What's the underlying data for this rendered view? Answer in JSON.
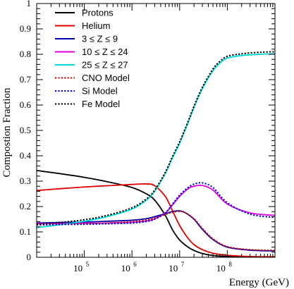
{
  "chart_data": {
    "type": "line",
    "title": "",
    "xlabel": "Energy (GeV)",
    "ylabel": "Compostion Fraction",
    "x_scale": "log",
    "xlim": [
      10000,
      1000000000
    ],
    "ylim": [
      0,
      1
    ],
    "x_ticks": [
      {
        "value": 100000,
        "base": "10",
        "exp": "5"
      },
      {
        "value": 1000000,
        "base": "10",
        "exp": "6"
      },
      {
        "value": 10000000,
        "base": "10",
        "exp": "7"
      },
      {
        "value": 100000000,
        "base": "10",
        "exp": "8"
      }
    ],
    "y_ticks": [
      "0",
      "0.1",
      "0.2",
      "0.3",
      "0.4",
      "0.5",
      "0.6",
      "0.7",
      "0.8",
      "0.9",
      "1"
    ],
    "grid": false,
    "legend_position": "top-left",
    "series": [
      {
        "name": "Protons",
        "color": "#000000",
        "dash": "solid",
        "x": [
          10000,
          30000,
          100000,
          300000,
          1000000,
          2000000,
          3000000,
          5000000,
          7000000,
          10000000,
          15000000,
          20000000,
          30000000,
          50000000,
          100000000,
          300000000,
          1000000000
        ],
        "y": [
          0.342,
          0.33,
          0.315,
          0.298,
          0.275,
          0.25,
          0.225,
          0.165,
          0.11,
          0.068,
          0.04,
          0.027,
          0.015,
          0.007,
          0.003,
          0.001,
          0.0
        ]
      },
      {
        "name": "Helium",
        "color": "#dd0000",
        "dash": "solid",
        "x": [
          10000,
          30000,
          100000,
          300000,
          1000000,
          2000000,
          3000000,
          5000000,
          7000000,
          10000000,
          15000000,
          20000000,
          30000000,
          50000000,
          100000000,
          300000000,
          1000000000
        ],
        "y": [
          0.263,
          0.27,
          0.277,
          0.282,
          0.287,
          0.289,
          0.282,
          0.24,
          0.185,
          0.125,
          0.075,
          0.05,
          0.03,
          0.016,
          0.008,
          0.003,
          0.002
        ]
      },
      {
        "name": "3 ≤ Z ≤ 9",
        "color": "#0000aa",
        "dash": "solid",
        "x": [
          10000,
          30000,
          100000,
          300000,
          1000000,
          2000000,
          3000000,
          5000000,
          7000000,
          10000000,
          13000000,
          20000000,
          30000000,
          50000000,
          100000000,
          300000000,
          1000000000
        ],
        "y": [
          0.135,
          0.137,
          0.139,
          0.142,
          0.146,
          0.152,
          0.16,
          0.172,
          0.18,
          0.183,
          0.176,
          0.15,
          0.11,
          0.07,
          0.04,
          0.028,
          0.025
        ]
      },
      {
        "name": "10 ≤ Z ≤ 24",
        "color": "#dd00dd",
        "dash": "solid",
        "x": [
          10000,
          30000,
          100000,
          300000,
          1000000,
          2000000,
          3000000,
          5000000,
          7000000,
          10000000,
          15000000,
          20000000,
          30000000,
          50000000,
          100000000,
          300000000,
          1000000000
        ],
        "y": [
          0.133,
          0.133,
          0.134,
          0.135,
          0.138,
          0.143,
          0.152,
          0.175,
          0.205,
          0.24,
          0.27,
          0.28,
          0.283,
          0.265,
          0.21,
          0.175,
          0.165
        ]
      },
      {
        "name": "25 ≤ Z ≤ 27",
        "color": "#00d8d8",
        "dash": "solid",
        "x": [
          10000,
          30000,
          100000,
          300000,
          1000000,
          2000000,
          3000000,
          5000000,
          7000000,
          10000000,
          15000000,
          20000000,
          30000000,
          50000000,
          70000000,
          100000000,
          200000000,
          500000000,
          1000000000
        ],
        "y": [
          0.117,
          0.128,
          0.142,
          0.16,
          0.19,
          0.225,
          0.26,
          0.33,
          0.39,
          0.45,
          0.53,
          0.59,
          0.665,
          0.735,
          0.765,
          0.785,
          0.795,
          0.8,
          0.802
        ]
      },
      {
        "name": "CNO Model",
        "color": "#dd0000",
        "dash": "dotted",
        "x": [
          10000,
          30000,
          100000,
          300000,
          1000000,
          2000000,
          3000000,
          5000000,
          7000000,
          10000000,
          13000000,
          20000000,
          30000000,
          50000000,
          100000000,
          300000000,
          1000000000
        ],
        "y": [
          0.128,
          0.13,
          0.132,
          0.135,
          0.14,
          0.147,
          0.155,
          0.168,
          0.177,
          0.181,
          0.176,
          0.152,
          0.114,
          0.073,
          0.042,
          0.03,
          0.027
        ]
      },
      {
        "name": "Si Model",
        "color": "#0000dd",
        "dash": "dotted",
        "x": [
          10000,
          30000,
          100000,
          300000,
          1000000,
          2000000,
          3000000,
          5000000,
          7000000,
          10000000,
          15000000,
          20000000,
          30000000,
          50000000,
          100000000,
          300000000,
          1000000000
        ],
        "y": [
          0.128,
          0.129,
          0.13,
          0.132,
          0.135,
          0.141,
          0.15,
          0.175,
          0.208,
          0.245,
          0.275,
          0.288,
          0.293,
          0.275,
          0.215,
          0.17,
          0.157
        ]
      },
      {
        "name": "Fe Model",
        "color": "#000000",
        "dash": "dotted",
        "x": [
          10000,
          30000,
          100000,
          300000,
          1000000,
          2000000,
          3000000,
          5000000,
          7000000,
          10000000,
          15000000,
          20000000,
          30000000,
          50000000,
          70000000,
          100000000,
          200000000,
          500000000,
          1000000000
        ],
        "y": [
          0.13,
          0.137,
          0.148,
          0.165,
          0.195,
          0.23,
          0.265,
          0.335,
          0.395,
          0.455,
          0.535,
          0.595,
          0.67,
          0.742,
          0.772,
          0.792,
          0.802,
          0.808,
          0.81
        ]
      }
    ]
  }
}
